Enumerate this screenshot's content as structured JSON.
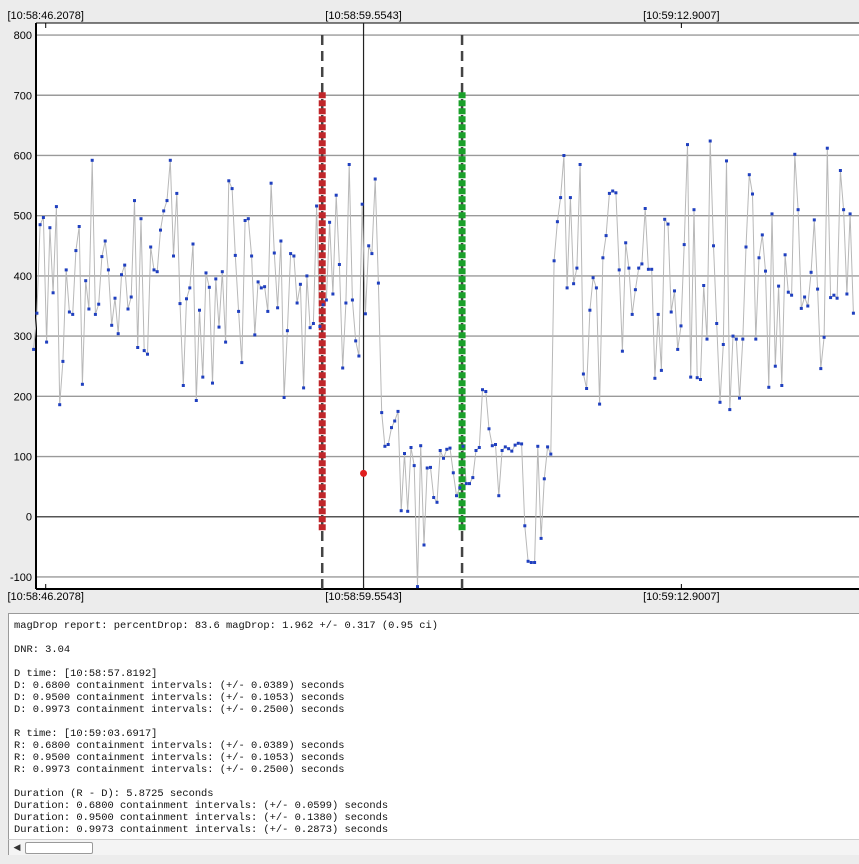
{
  "chart_data": {
    "type": "scatter",
    "title": "",
    "xlabel": "",
    "ylabel": "",
    "ylim": [
      -120,
      820
    ],
    "yticks": [
      -100,
      0,
      100,
      200,
      300,
      400,
      500,
      600,
      700,
      800
    ],
    "grid": true,
    "time_labels_top": [
      "[10:58:46.2078]",
      "[10:58:59.5543]",
      "[10:59:12.9007]"
    ],
    "time_labels_bottom": [
      "[10:58:46.2078]",
      "[10:58:59.5543]",
      "[10:59:12.9007]"
    ],
    "x_time_seconds": [
      46.2078,
      59.5543,
      72.9007
    ],
    "x_range_seconds": [
      45.8,
      80.36
    ],
    "series_color": "#1f3fbf",
    "line_color": "#b8b8b8",
    "d_marker": {
      "time": "[10:58:57.8192]",
      "seconds": 57.8192,
      "color": "#c0262a",
      "top": 705,
      "bottom": -25
    },
    "r_marker": {
      "time": "[10:59:03.6917]",
      "seconds": 63.6917,
      "color": "#1aa02a",
      "top": 705,
      "bottom": -25
    },
    "center_point": {
      "seconds": 59.5543,
      "value": 72,
      "color": "#e02020"
    },
    "y_values": [
      278,
      338,
      485,
      497,
      290,
      480,
      372,
      515,
      186,
      258,
      410,
      340,
      336,
      442,
      482,
      220,
      392,
      345,
      592,
      336,
      353,
      432,
      458,
      410,
      318,
      363,
      304,
      402,
      418,
      345,
      365,
      525,
      281,
      495,
      276,
      270,
      448,
      410,
      407,
      476,
      508,
      525,
      592,
      433,
      537,
      354,
      218,
      362,
      380,
      453,
      193,
      343,
      232,
      405,
      381,
      222,
      395,
      315,
      407,
      290,
      558,
      545,
      434,
      341,
      256,
      492,
      495,
      433,
      302,
      390,
      380,
      382,
      341,
      554,
      438,
      347,
      458,
      198,
      309,
      437,
      433,
      355,
      386,
      214,
      400,
      314,
      321,
      516,
      316,
      352,
      360,
      489,
      370,
      534,
      419,
      247,
      355,
      585,
      360,
      292,
      267,
      519,
      337,
      450,
      437,
      561,
      388,
      173,
      117,
      120,
      148,
      159,
      175,
      10,
      105,
      9,
      115,
      85,
      -116,
      118,
      -47,
      81,
      82,
      32,
      24,
      110,
      97,
      112,
      114,
      73,
      35,
      48,
      117,
      55,
      55,
      65,
      110,
      115,
      211,
      208,
      146,
      118,
      120,
      35,
      110,
      116,
      113,
      109,
      119,
      122,
      121,
      -15,
      -74,
      -76,
      -76,
      117,
      -36,
      63,
      116,
      104,
      425,
      490,
      530,
      600,
      380,
      530,
      387,
      413,
      585,
      237,
      213,
      343,
      397,
      380,
      187,
      430,
      467,
      537,
      541,
      538,
      410,
      275,
      455,
      413,
      336,
      377,
      413,
      420,
      512,
      411,
      411,
      230,
      336,
      243,
      494,
      486,
      340,
      375,
      278,
      317,
      452,
      618,
      232,
      510,
      231,
      228,
      384,
      295,
      624,
      450,
      321,
      190,
      286,
      591,
      178,
      300,
      295,
      197,
      295,
      448,
      568,
      536,
      295,
      430,
      468,
      408,
      215,
      503,
      250,
      383,
      218,
      435,
      373,
      368,
      602,
      510,
      346,
      365,
      350,
      406,
      493,
      378,
      246,
      298,
      612,
      364,
      368,
      363,
      575,
      510,
      370,
      503,
      338
    ],
    "unit_caption": ""
  },
  "report": {
    "lines": [
      "magDrop report: percentDrop: 83.6 magDrop: 1.962 +/- 0.317 (0.95 ci)",
      "",
      "DNR: 3.04",
      "",
      "D time: [10:58:57.8192]",
      "D: 0.6800 containment intervals: (+/- 0.0389) seconds",
      "D: 0.9500 containment intervals: (+/- 0.1053) seconds",
      "D: 0.9973 containment intervals: (+/- 0.2500) seconds",
      "",
      "R time: [10:59:03.6917]",
      "R: 0.6800 containment intervals: (+/- 0.0389) seconds",
      "R: 0.9500 containment intervals: (+/- 0.1053) seconds",
      "R: 0.9973 containment intervals: (+/- 0.2500) seconds",
      "",
      "Duration (R - D): 5.8725 seconds",
      "Duration: 0.6800 containment intervals: (+/- 0.0599) seconds",
      "Duration: 0.9500 containment intervals: (+/- 0.1380) seconds",
      "Duration: 0.9973 containment intervals: (+/- 0.2873) seconds"
    ]
  },
  "scrollbar": {
    "left_arrow_icon": "arrow-left-icon",
    "left_arrow_glyph": "◀"
  }
}
